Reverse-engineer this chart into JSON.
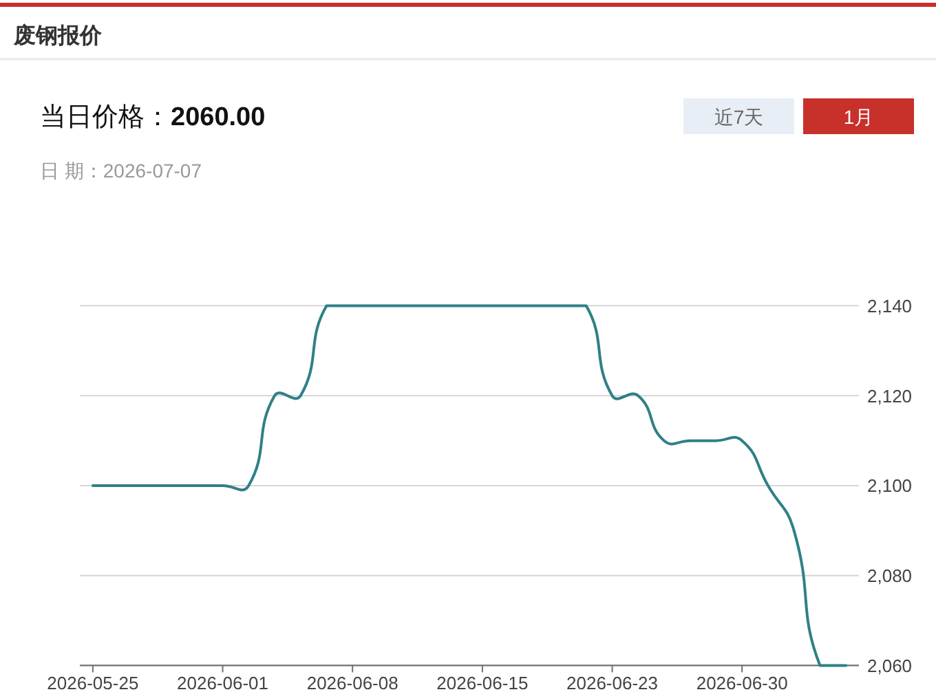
{
  "chart_data": {
    "type": "line",
    "title": "废钢报价",
    "subtitle": "当日价格：**2060.00**",
    "annotations": [
      "日 期：2026-07-07",
      "近7天",
      "1月"
    ],
    "categories": [
      "2026-05-25",
      null,
      null,
      null,
      null,
      "2026-06-01",
      null,
      null,
      null,
      null,
      "2026-06-08",
      null,
      null,
      null,
      null,
      "2026-06-15",
      null,
      null,
      null,
      null,
      "2026-06-23",
      null,
      null,
      null,
      null,
      "2026-06-30",
      null,
      null,
      null,
      null
    ],
    "series": [
      {
        "color": "#2f8086",
        "values": [
          2100,
          2100,
          2100,
          2100,
          2100,
          2100,
          2100,
          2120,
          2120,
          2140,
          2140,
          2140,
          2140,
          2140,
          2140,
          2140,
          2140,
          2140,
          2140,
          2140,
          2120,
          2120,
          2110,
          2110,
          2110,
          2110,
          2100,
          2090,
          2060,
          2060
        ]
      }
    ],
    "ylim": [
      2060,
      2140
    ],
    "yticks": [
      {
        "value": 2060,
        "label": "2,060"
      },
      {
        "value": 2080,
        "label": "2,080"
      },
      {
        "value": 2100,
        "label": "2,100"
      },
      {
        "value": 2120,
        "label": "2,120"
      },
      {
        "value": 2140,
        "label": "2,140"
      }
    ],
    "grid": "y",
    "marker": "none",
    "line_style": "solid"
  }
}
